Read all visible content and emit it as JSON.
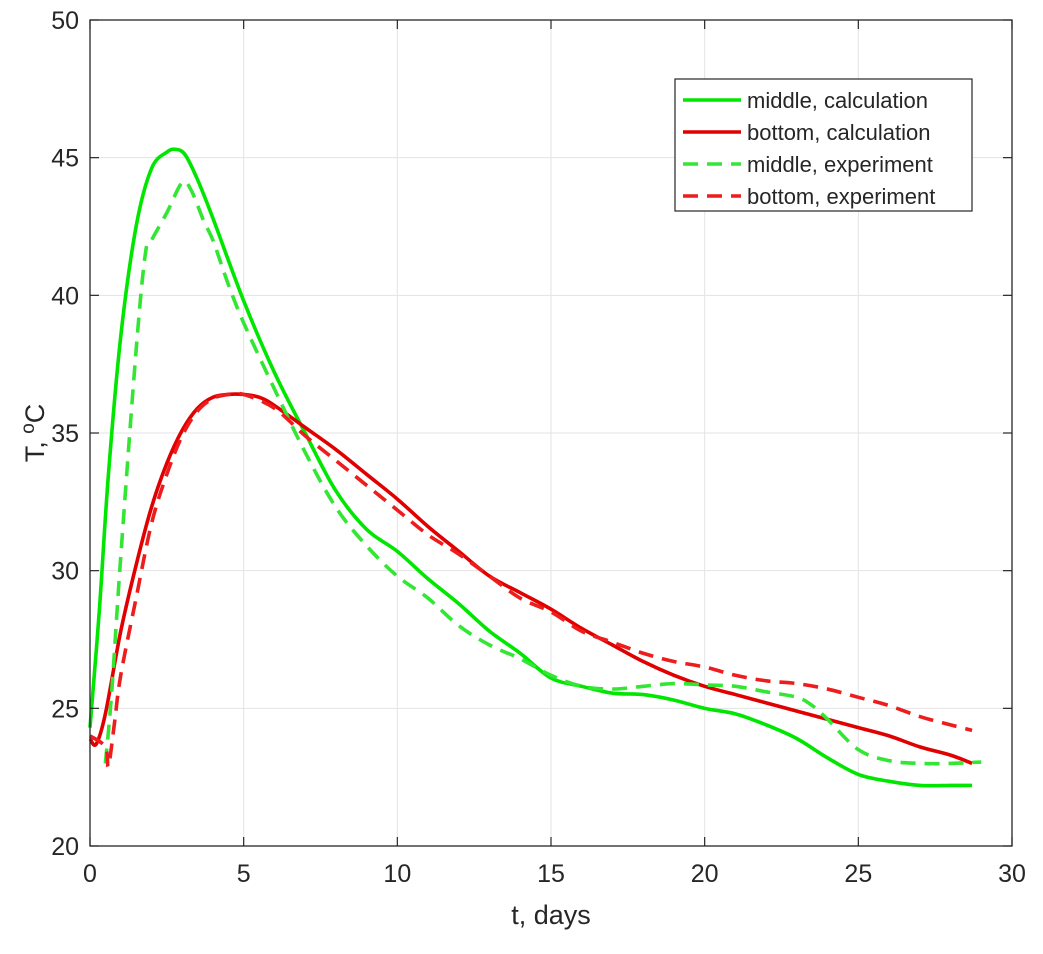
{
  "chart_data": {
    "type": "line",
    "title": "",
    "xlabel": "t, days",
    "ylabel": {
      "base": "T, ",
      "sup": "o",
      "unit": "C"
    },
    "xlim": [
      0,
      30
    ],
    "ylim": [
      20,
      50
    ],
    "xticks": [
      "0",
      "5",
      "10",
      "15",
      "20",
      "25",
      "30"
    ],
    "yticks": [
      "20",
      "25",
      "30",
      "35",
      "40",
      "45",
      "50"
    ],
    "grid": true,
    "legend_position": "top-right",
    "series": [
      {
        "name": "middle, calculation",
        "color": "#00e600",
        "dash": "solid",
        "x": [
          0,
          0.3,
          0.6,
          1,
          1.5,
          2,
          2.5,
          2.8,
          3.1,
          3.5,
          4,
          5,
          6,
          7,
          8,
          9,
          10,
          11,
          12,
          13,
          14,
          15,
          16,
          17,
          18,
          19,
          20,
          21,
          22,
          23,
          24,
          25,
          26,
          27,
          28,
          28.7
        ],
        "y": [
          24.3,
          28.5,
          33.5,
          38.5,
          42.5,
          44.6,
          45.2,
          45.3,
          45.1,
          44.2,
          42.8,
          39.8,
          37.2,
          35.0,
          32.9,
          31.5,
          30.7,
          29.7,
          28.8,
          27.8,
          27.0,
          26.1,
          25.8,
          25.55,
          25.5,
          25.3,
          25.0,
          24.8,
          24.4,
          23.9,
          23.2,
          22.6,
          22.35,
          22.2,
          22.2,
          22.2
        ]
      },
      {
        "name": "bottom, calculation",
        "color": "#e00000",
        "dash": "solid",
        "x": [
          0,
          0.2,
          0.5,
          1,
          1.5,
          2,
          2.5,
          3,
          3.5,
          4,
          4.5,
          5,
          5.5,
          6,
          7,
          8,
          9,
          10,
          11,
          12,
          13,
          14,
          15,
          16,
          17,
          18,
          19,
          20,
          21,
          22,
          23,
          24,
          25,
          26,
          27,
          28,
          28.7
        ],
        "y": [
          23.9,
          23.7,
          24.8,
          27.8,
          30.2,
          32.3,
          33.9,
          35.1,
          35.9,
          36.3,
          36.4,
          36.4,
          36.3,
          36.0,
          35.2,
          34.4,
          33.5,
          32.6,
          31.6,
          30.7,
          29.8,
          29.2,
          28.6,
          27.9,
          27.3,
          26.7,
          26.2,
          25.8,
          25.5,
          25.2,
          24.9,
          24.6,
          24.3,
          24.0,
          23.6,
          23.3,
          23.0
        ]
      },
      {
        "name": "middle, experiment",
        "color": "#33e633",
        "dash": "dashed",
        "x": [
          0.5,
          0.7,
          1,
          1.5,
          1.8,
          2,
          2.5,
          3,
          3.3,
          3.7,
          4,
          4.5,
          5,
          6,
          7,
          8,
          9,
          10,
          11,
          12,
          13,
          14,
          15,
          16,
          17,
          18,
          19,
          20,
          21,
          22,
          23,
          23.5,
          24,
          25,
          26,
          27,
          28,
          29
        ],
        "y": [
          23.0,
          25.5,
          30.5,
          38.0,
          41.5,
          42.0,
          43.0,
          44.1,
          43.8,
          42.7,
          42.0,
          40.4,
          39.0,
          36.6,
          34.3,
          32.3,
          30.9,
          29.8,
          29.0,
          28.0,
          27.3,
          26.8,
          26.2,
          25.8,
          25.7,
          25.8,
          25.9,
          25.85,
          25.8,
          25.6,
          25.4,
          25.1,
          24.6,
          23.5,
          23.1,
          23.0,
          23.0,
          23.05
        ]
      },
      {
        "name": "bottom, experiment",
        "color": "#ee1c1c",
        "dash": "dashed",
        "x": [
          0,
          0.5,
          0.6,
          0.8,
          1,
          1.5,
          2,
          2.5,
          3,
          3.5,
          4,
          4.5,
          5,
          6,
          7,
          8,
          9,
          10,
          11,
          12,
          13,
          14,
          15,
          16,
          17,
          18,
          19,
          20,
          21,
          22,
          23,
          24,
          25,
          26,
          27,
          28,
          28.7
        ],
        "y": [
          24.0,
          23.6,
          22.9,
          24.5,
          26.2,
          29.0,
          31.7,
          33.5,
          34.9,
          35.8,
          36.25,
          36.4,
          36.4,
          35.9,
          34.9,
          34.0,
          33.1,
          32.2,
          31.3,
          30.6,
          29.8,
          29.0,
          28.5,
          27.8,
          27.4,
          27.0,
          26.7,
          26.5,
          26.2,
          26.0,
          25.9,
          25.7,
          25.4,
          25.1,
          24.7,
          24.4,
          24.2
        ]
      }
    ]
  }
}
